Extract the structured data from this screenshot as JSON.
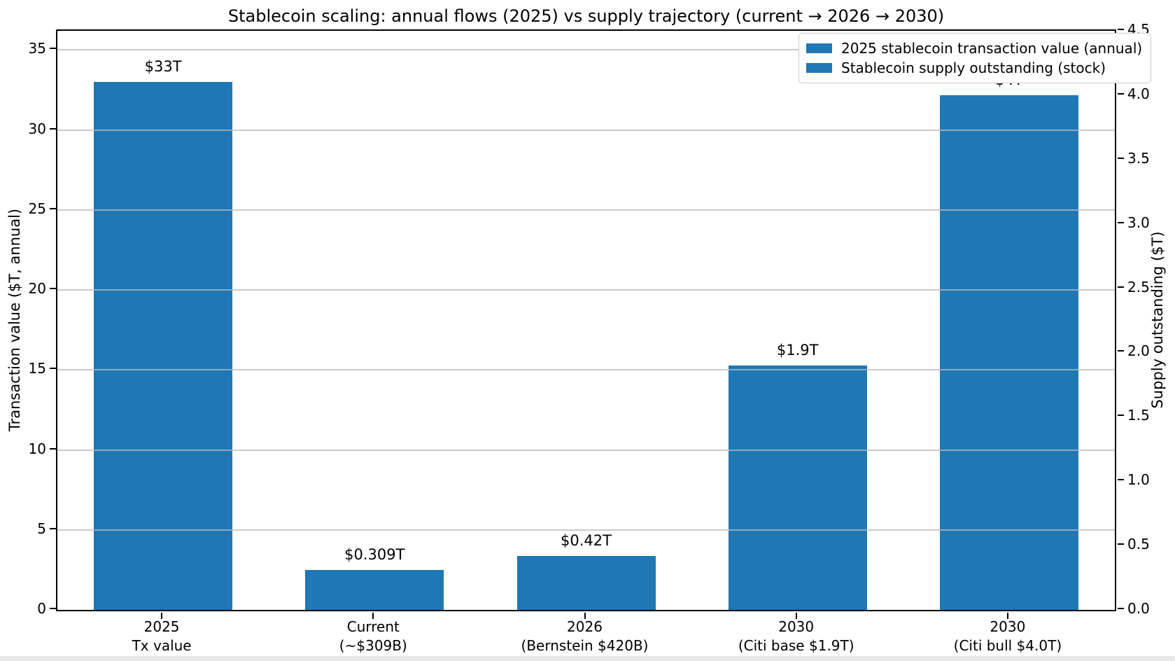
{
  "chart_data": {
    "type": "bar",
    "title": "Stablecoin scaling: annual flows (2025) vs supply trajectory (current → 2026 → 2030)",
    "dual_axis": true,
    "bar_color": "#1f77b4",
    "categories": [
      "2025\nTx value",
      "Current\n(~$309B)",
      "2026\n(Bernstein $420B)",
      "2030\n(Citi base $1.9T)",
      "2030\n(Citi bull $4.0T)"
    ],
    "bars": [
      {
        "category": "2025\nTx value",
        "value": 33,
        "axis": "left",
        "label": "$33T",
        "series": "2025 stablecoin transaction value (annual)"
      },
      {
        "category": "Current\n(~$309B)",
        "value": 0.309,
        "axis": "right",
        "label": "$0.309T",
        "series": "Stablecoin supply outstanding (stock)"
      },
      {
        "category": "2026\n(Bernstein $420B)",
        "value": 0.42,
        "axis": "right",
        "label": "$0.42T",
        "series": "Stablecoin supply outstanding (stock)"
      },
      {
        "category": "2030\n(Citi base $1.9T)",
        "value": 1.9,
        "axis": "right",
        "label": "$1.9T",
        "series": "Stablecoin supply outstanding (stock)"
      },
      {
        "category": "2030\n(Citi bull $4.0T)",
        "value": 4.0,
        "axis": "right",
        "label": "$4T",
        "series": "Stablecoin supply outstanding (stock)"
      }
    ],
    "left_axis": {
      "label": "Transaction value ($T, annual)",
      "ticks": [
        0,
        5,
        10,
        15,
        20,
        25,
        30,
        35
      ],
      "range": [
        0,
        36.2
      ]
    },
    "right_axis": {
      "label": "Supply outstanding ($T)",
      "ticks": [
        "0.0",
        "0.5",
        "1.0",
        "1.5",
        "2.0",
        "2.5",
        "3.0",
        "3.5",
        "4.0",
        "4.5"
      ],
      "range": [
        0,
        4.5
      ]
    },
    "grid": {
      "axis": "y",
      "at": "left_ticks",
      "color": "#b9b9b9",
      "above_bars": true
    },
    "legend": {
      "position": "upper right",
      "entries": [
        {
          "label": "2025 stablecoin transaction value (annual)",
          "color": "#1f77b4"
        },
        {
          "label": "Stablecoin supply outstanding (stock)",
          "color": "#1f77b4"
        }
      ]
    }
  }
}
